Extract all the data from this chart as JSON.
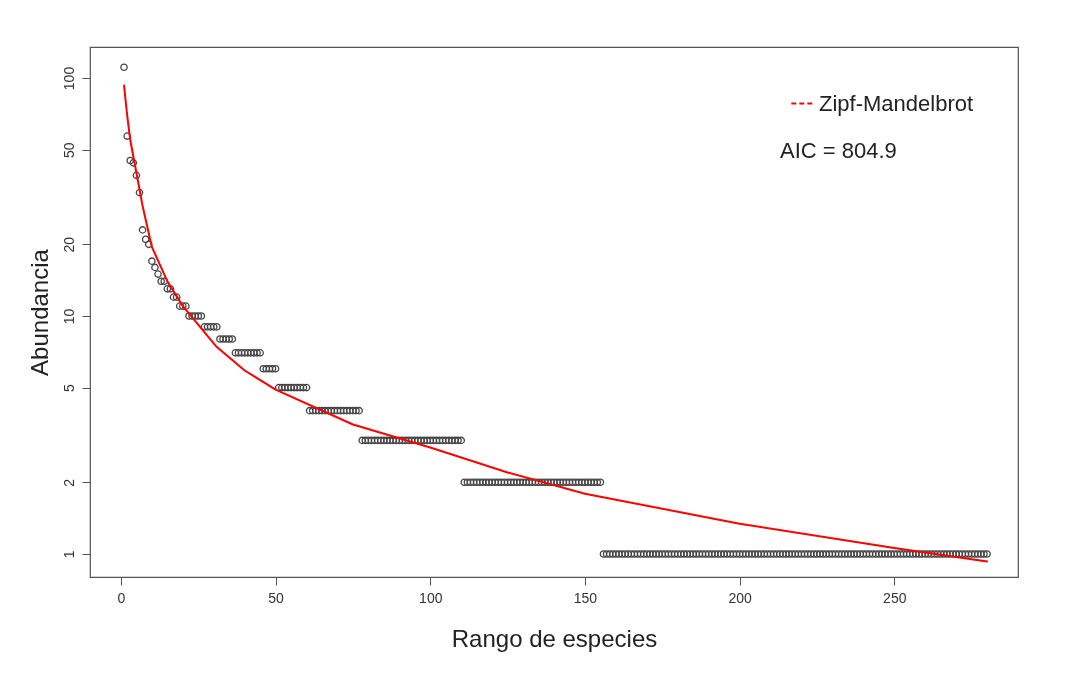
{
  "chart_data": {
    "type": "scatter",
    "xlabel": "Rango de especies",
    "ylabel": "Abundancia",
    "xlim": [
      -10,
      290
    ],
    "xticks": [
      0,
      50,
      100,
      150,
      200,
      250
    ],
    "ylim": [
      0.8,
      135
    ],
    "yticks": [
      1,
      2,
      5,
      10,
      20,
      50,
      100
    ],
    "log": true,
    "grid": false,
    "legend": "top right",
    "annotations": [
      "AIC =  804.9"
    ],
    "series": [
      {
        "marker": "circle",
        "color": "#444444",
        "x": [
          1,
          2,
          3,
          4,
          5,
          6,
          7,
          8,
          9,
          10,
          11,
          12,
          13,
          14,
          15,
          16,
          17,
          18,
          19,
          20,
          21,
          22,
          23,
          24,
          25,
          26,
          27,
          28,
          29,
          30,
          31,
          32,
          33,
          34,
          35,
          36,
          37,
          38,
          39,
          40,
          41,
          42,
          43,
          44,
          45,
          46,
          47,
          48,
          49,
          50,
          51,
          52,
          53,
          54,
          55,
          56,
          57,
          58,
          59,
          60,
          61,
          62,
          63,
          64,
          65,
          66,
          67,
          68,
          69,
          70,
          71,
          72,
          73,
          74,
          75,
          76,
          77,
          78,
          79,
          80,
          81,
          82,
          83,
          84,
          85,
          86,
          87,
          88,
          89,
          90,
          91,
          92,
          93,
          94,
          95,
          96,
          97,
          98,
          99,
          100,
          101,
          102,
          103,
          104,
          105,
          106,
          107,
          108,
          109,
          110,
          111,
          112,
          113,
          114,
          115,
          116,
          117,
          118,
          119,
          120,
          121,
          122,
          123,
          124,
          125,
          126,
          127,
          128,
          129,
          130,
          131,
          132,
          133,
          134,
          135,
          136,
          137,
          138,
          139,
          140,
          141,
          142,
          143,
          144,
          145,
          146,
          147,
          148,
          149,
          150,
          151,
          152,
          153,
          154,
          155,
          156,
          157,
          158,
          159,
          160,
          161,
          162,
          163,
          164,
          165,
          166,
          167,
          168,
          169,
          170,
          171,
          172,
          173,
          174,
          175,
          176,
          177,
          178,
          179,
          180,
          181,
          182,
          183,
          184,
          185,
          186,
          187,
          188,
          189,
          190,
          191,
          192,
          193,
          194,
          195,
          196,
          197,
          198,
          199,
          200,
          201,
          202,
          203,
          204,
          205,
          206,
          207,
          208,
          209,
          210,
          211,
          212,
          213,
          214,
          215,
          216,
          217,
          218,
          219,
          220,
          221,
          222,
          223,
          224,
          225,
          226,
          227,
          228,
          229,
          230,
          231,
          232,
          233,
          234,
          235,
          236,
          237,
          238,
          239,
          240,
          241,
          242,
          243,
          244,
          245,
          246,
          247,
          248,
          249,
          250,
          251,
          252,
          253,
          254,
          255,
          256,
          257,
          258,
          259,
          260,
          261,
          262,
          263,
          264,
          265,
          266,
          267,
          268,
          269,
          270,
          271,
          272,
          273,
          274,
          275,
          276,
          277,
          278,
          279,
          280
        ],
        "values": [
          111,
          57,
          45,
          44,
          39,
          33,
          23,
          21,
          20,
          17,
          16,
          15,
          14,
          14,
          13,
          13,
          12,
          12,
          11,
          11,
          11,
          10,
          10,
          10,
          10,
          10,
          9,
          9,
          9,
          9,
          9,
          8,
          8,
          8,
          8,
          8,
          7,
          7,
          7,
          7,
          7,
          7,
          7,
          7,
          7,
          6,
          6,
          6,
          6,
          6,
          5,
          5,
          5,
          5,
          5,
          5,
          5,
          5,
          5,
          5,
          4,
          4,
          4,
          4,
          4,
          4,
          4,
          4,
          4,
          4,
          4,
          4,
          4,
          4,
          4,
          4,
          4,
          3,
          3,
          3,
          3,
          3,
          3,
          3,
          3,
          3,
          3,
          3,
          3,
          3,
          3,
          3,
          3,
          3,
          3,
          3,
          3,
          3,
          3,
          3,
          3,
          3,
          3,
          3,
          3,
          3,
          3,
          3,
          3,
          3,
          2,
          2,
          2,
          2,
          2,
          2,
          2,
          2,
          2,
          2,
          2,
          2,
          2,
          2,
          2,
          2,
          2,
          2,
          2,
          2,
          2,
          2,
          2,
          2,
          2,
          2,
          2,
          2,
          2,
          2,
          2,
          2,
          2,
          2,
          2,
          2,
          2,
          2,
          2,
          2,
          2,
          2,
          2,
          2,
          2,
          1,
          1,
          1,
          1,
          1,
          1,
          1,
          1,
          1,
          1,
          1,
          1,
          1,
          1,
          1,
          1,
          1,
          1,
          1,
          1,
          1,
          1,
          1,
          1,
          1,
          1,
          1,
          1,
          1,
          1,
          1,
          1,
          1,
          1,
          1,
          1,
          1,
          1,
          1,
          1,
          1,
          1,
          1,
          1,
          1,
          1,
          1,
          1,
          1,
          1,
          1,
          1,
          1,
          1,
          1,
          1,
          1,
          1,
          1,
          1,
          1,
          1,
          1,
          1,
          1,
          1,
          1,
          1,
          1,
          1,
          1,
          1,
          1,
          1,
          1,
          1,
          1,
          1,
          1,
          1,
          1,
          1,
          1,
          1,
          1,
          1,
          1,
          1,
          1,
          1,
          1,
          1,
          1,
          1,
          1,
          1,
          1,
          1,
          1,
          1,
          1,
          1,
          1,
          1,
          1,
          1,
          1,
          1,
          1,
          1,
          1,
          1,
          1,
          1,
          1,
          1,
          1,
          1,
          1,
          1,
          1,
          1,
          1,
          1,
          1
        ]
      },
      {
        "type": "line",
        "marker": "none",
        "name": "Zipf-Mandelbrot",
        "color": "#ff0000",
        "x": [
          1,
          2,
          3,
          5,
          7,
          10,
          15,
          20,
          31,
          40,
          50,
          75,
          100,
          125,
          150,
          200,
          250,
          280
        ],
        "values": [
          93,
          70,
          55,
          40,
          29,
          19.5,
          14,
          11,
          7.4,
          5.9,
          4.9,
          3.5,
          2.8,
          2.2,
          1.79,
          1.34,
          1.06,
          0.93
        ]
      }
    ]
  }
}
